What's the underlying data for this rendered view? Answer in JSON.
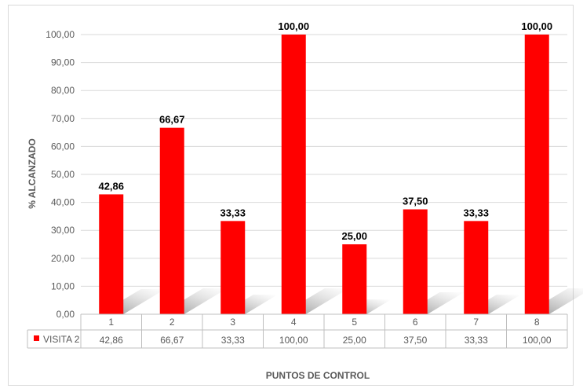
{
  "chart_data": {
    "type": "bar",
    "title": "",
    "xlabel": "PUNTOS DE CONTROL",
    "ylabel": "% ALCANZADO",
    "ylim": [
      0,
      100
    ],
    "ytick_values": [
      0,
      10,
      20,
      30,
      40,
      50,
      60,
      70,
      80,
      90,
      100
    ],
    "ytick_labels": [
      "0,00",
      "10,00",
      "20,00",
      "30,00",
      "40,00",
      "50,00",
      "60,00",
      "70,00",
      "80,00",
      "90,00",
      "100,00"
    ],
    "categories": [
      "1",
      "2",
      "3",
      "4",
      "5",
      "6",
      "7",
      "8"
    ],
    "series": [
      {
        "name": "VISITA 2",
        "color": "#ff0000",
        "values": [
          42.86,
          66.67,
          33.33,
          100.0,
          25.0,
          37.5,
          33.33,
          100.0
        ],
        "labels": [
          "42,86",
          "66,67",
          "33,33",
          "100,00",
          "25,00",
          "37,50",
          "33,33",
          "100,00"
        ]
      }
    ],
    "data_table": true,
    "grid": true,
    "legend": "data-table"
  }
}
